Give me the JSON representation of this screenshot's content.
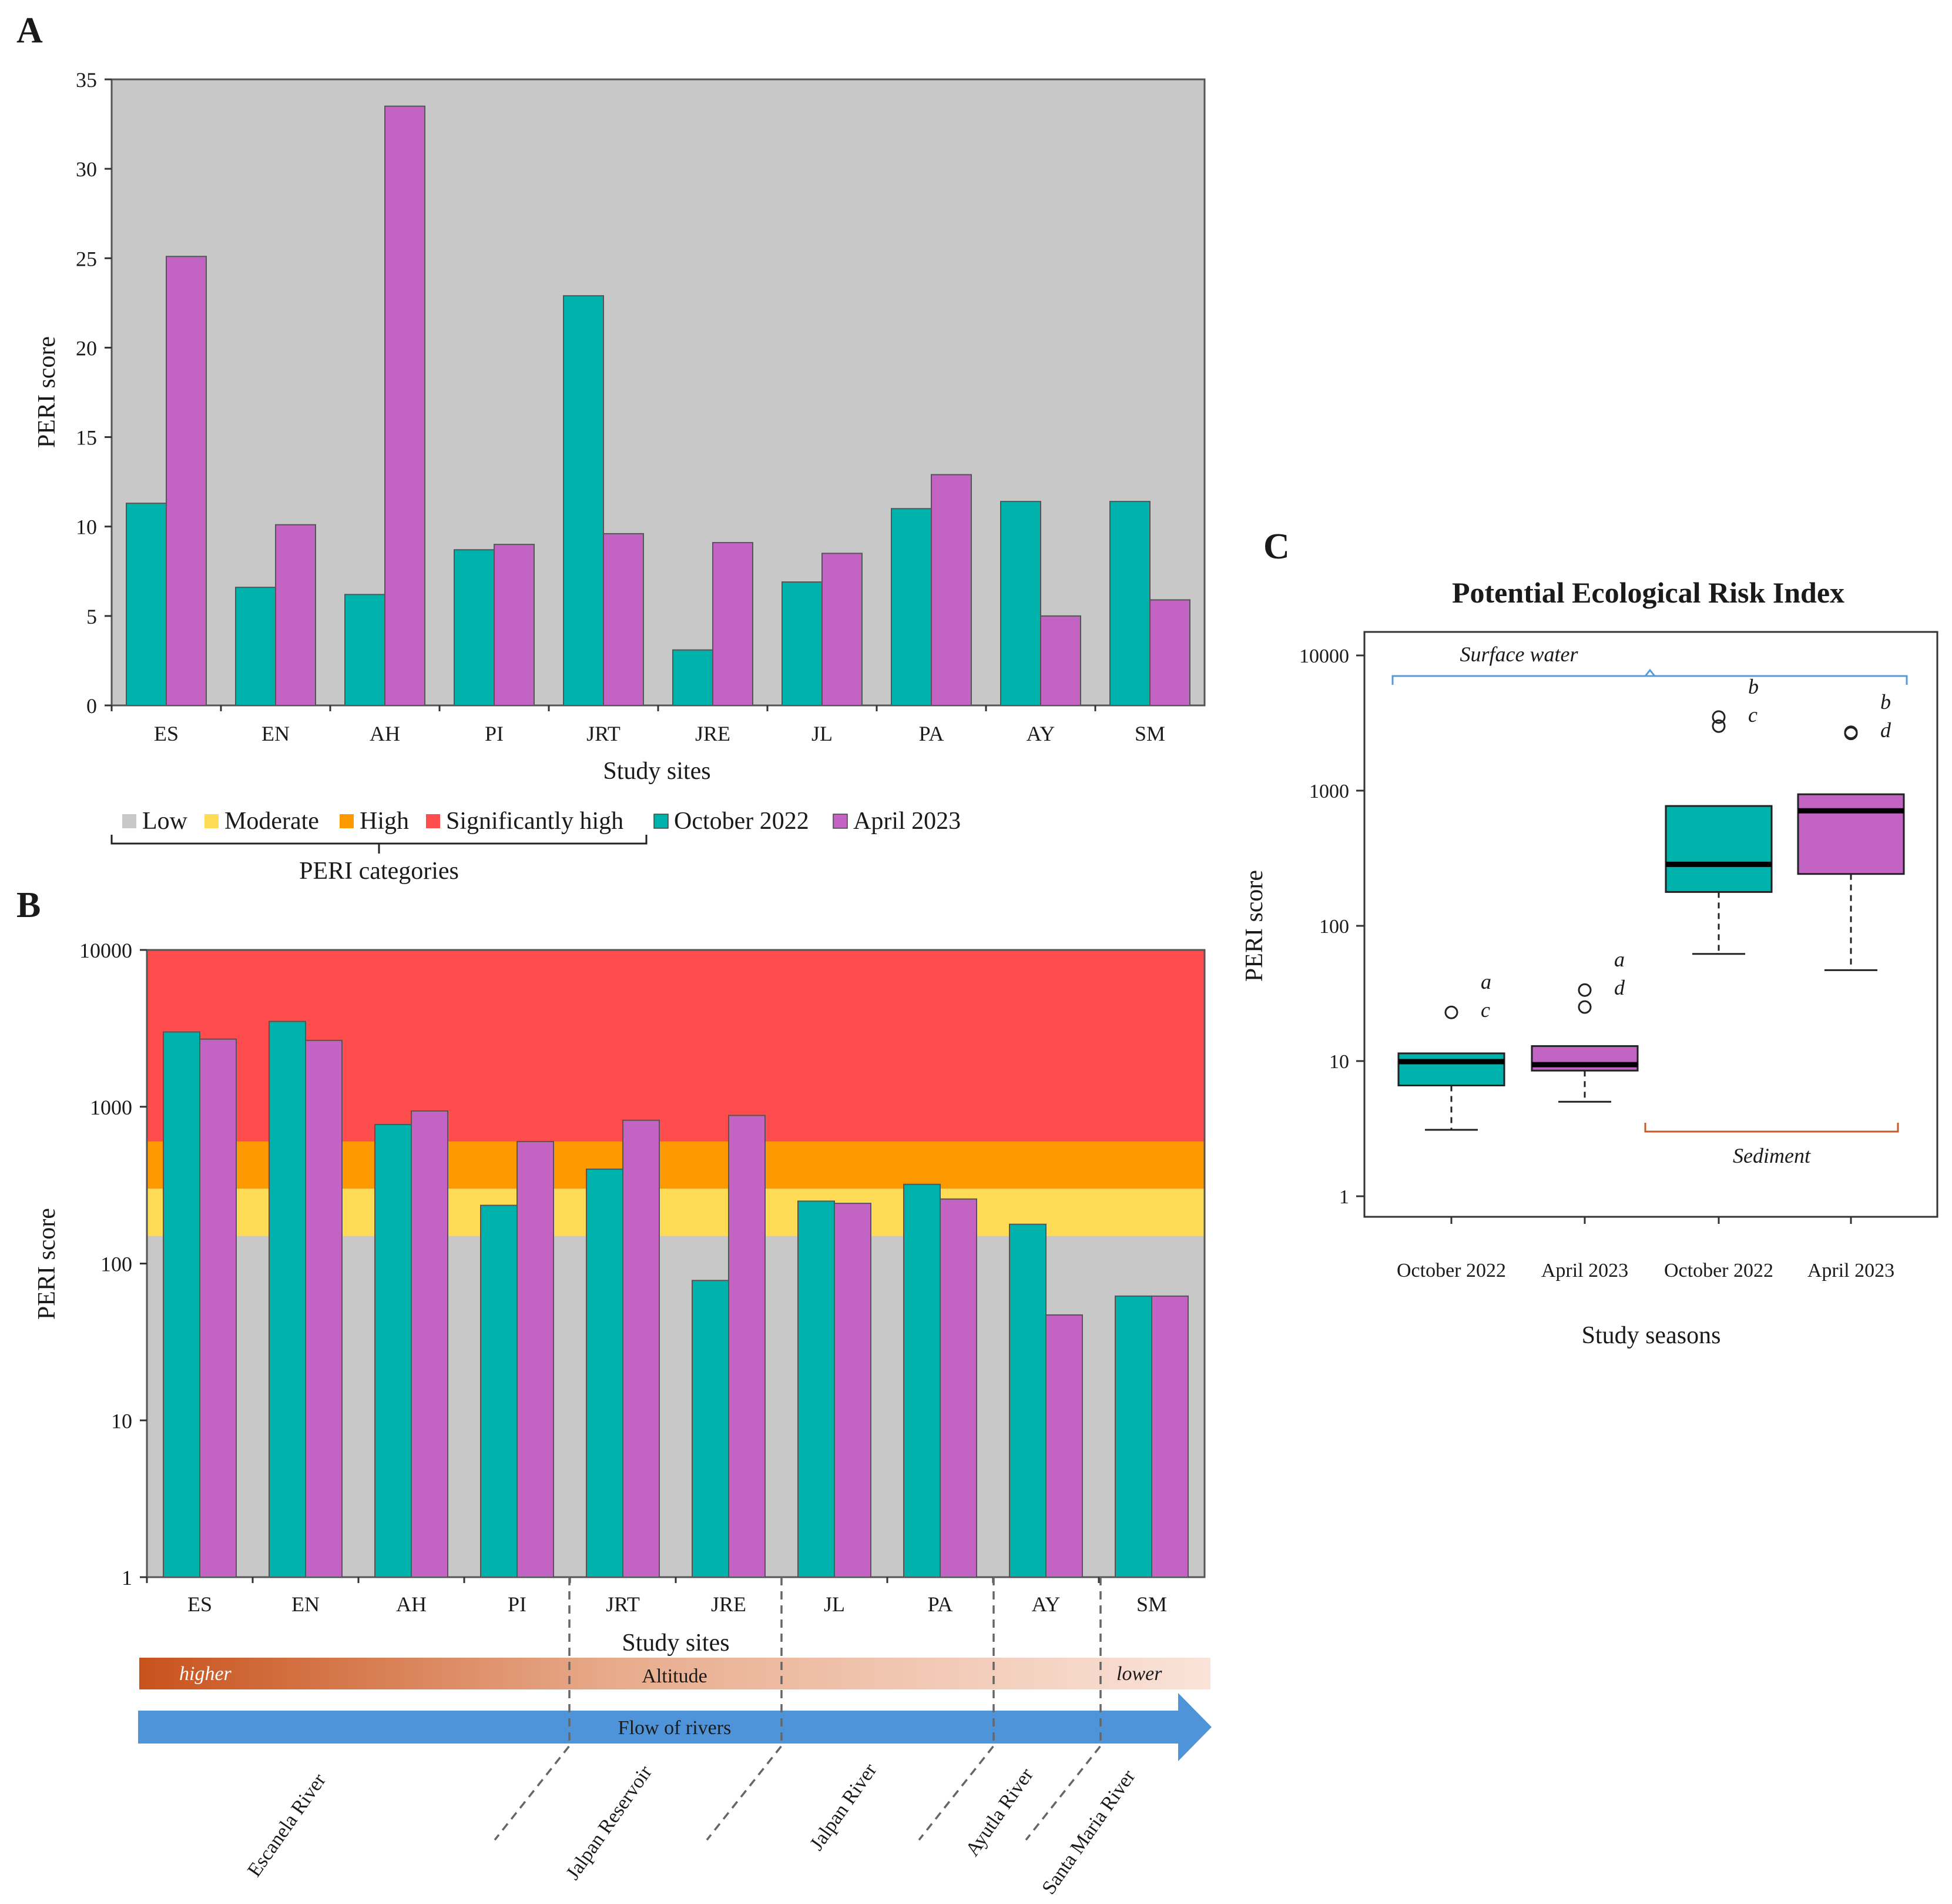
{
  "panels": {
    "a_label": "A",
    "b_label": "B",
    "c_label": "C"
  },
  "colors": {
    "october": "#00b2ac",
    "april": "#c364c5",
    "low": "#c8c8c8",
    "moderate": "#ffdc55",
    "high": "#ff9900",
    "significantly_high": "#ff4d4d",
    "surface_bracket": "#5b9bd5",
    "sediment_bracket": "#c55a2a",
    "flow_arrow": "#4f94d9",
    "altitude_high": "#c8521c",
    "altitude_low": "#fae3d9"
  },
  "legend": {
    "items": [
      {
        "label": "Low",
        "color": "#c8c8c8"
      },
      {
        "label": "Moderate",
        "color": "#ffdc55"
      },
      {
        "label": "High",
        "color": "#ff9900"
      },
      {
        "label": "Significantly high",
        "color": "#ff4d4d"
      },
      {
        "label": "October 2022",
        "color": "#00b2ac"
      },
      {
        "label": "April 2023",
        "color": "#c364c5"
      }
    ],
    "group_label": "PERI categories"
  },
  "chart_data": [
    {
      "id": "A",
      "type": "bar",
      "title": "",
      "xlabel": "Study sites",
      "ylabel": "PERI score",
      "ylim": [
        0,
        35
      ],
      "yticks": [
        0,
        5,
        10,
        15,
        20,
        25,
        30,
        35
      ],
      "background": "Low",
      "categories": [
        "ES",
        "EN",
        "AH",
        "PI",
        "JRT",
        "JRE",
        "JL",
        "PA",
        "AY",
        "SM"
      ],
      "series": [
        {
          "name": "October 2022",
          "values": [
            11.3,
            6.6,
            6.2,
            8.7,
            22.9,
            3.1,
            6.9,
            11.0,
            11.4,
            11.4
          ]
        },
        {
          "name": "April 2023",
          "values": [
            25.1,
            10.1,
            33.5,
            9.0,
            9.6,
            9.1,
            8.5,
            12.9,
            5.0,
            5.9
          ]
        }
      ]
    },
    {
      "id": "B",
      "type": "bar",
      "scale": "log",
      "xlabel": "Study sites",
      "ylabel": "PERI score",
      "ylim": [
        1,
        10000
      ],
      "yticks": [
        1,
        10,
        100,
        1000,
        10000
      ],
      "bands": [
        {
          "name": "Low",
          "from": 1,
          "to": 150
        },
        {
          "name": "Moderate",
          "from": 150,
          "to": 300
        },
        {
          "name": "High",
          "from": 300,
          "to": 600
        },
        {
          "name": "Significantly high",
          "from": 600,
          "to": 10000
        }
      ],
      "categories": [
        "ES",
        "EN",
        "AH",
        "PI",
        "JRT",
        "JRE",
        "JL",
        "PA",
        "AY",
        "SM"
      ],
      "series": [
        {
          "name": "October 2022",
          "values": [
            3000,
            3500,
            770,
            235,
            400,
            78,
            250,
            320,
            178,
            62
          ]
        },
        {
          "name": "April 2023",
          "values": [
            2700,
            2650,
            940,
            600,
            820,
            880,
            242,
            258,
            47,
            62
          ]
        }
      ],
      "altitude": {
        "label": "Altitude",
        "high_label": "higher",
        "low_label": "lower"
      },
      "flow_label": "Flow of rivers",
      "rivers": [
        "Escanela River",
        "Jalpan Reservoir",
        "Jalpan River",
        "Ayutla River",
        "Santa Maria River"
      ]
    },
    {
      "id": "C",
      "type": "box",
      "scale": "log",
      "title": "Potential Ecological Risk Index",
      "xlabel": "Study seasons",
      "ylabel": "PERI score",
      "ylim": [
        1,
        10000
      ],
      "yticks": [
        1,
        10,
        100,
        1000,
        10000
      ],
      "groups": [
        {
          "label": "October 2022",
          "matrix": "Surface water",
          "color": "october",
          "whisker_low": 3.1,
          "q1": 6.6,
          "median": 9.9,
          "q3": 11.4,
          "whisker_high": 11.4,
          "outliers": [
            22.9
          ],
          "letters": [
            "a",
            "c"
          ]
        },
        {
          "label": "April 2023",
          "matrix": "Surface water",
          "color": "april",
          "whisker_low": 5.0,
          "q1": 8.5,
          "median": 9.4,
          "q3": 12.9,
          "whisker_high": 12.9,
          "outliers": [
            25.1,
            33.5
          ],
          "letters": [
            "a",
            "d"
          ]
        },
        {
          "label": "October 2022",
          "matrix": "Sediment",
          "color": "october",
          "whisker_low": 62,
          "q1": 178,
          "median": 285,
          "q3": 770,
          "whisker_high": 770,
          "outliers": [
            3000,
            3500
          ],
          "letters": [
            "b",
            "c"
          ]
        },
        {
          "label": "April 2023",
          "matrix": "Sediment",
          "color": "april",
          "whisker_low": 47,
          "q1": 242,
          "median": 710,
          "q3": 940,
          "whisker_high": 940,
          "outliers": [
            2650,
            2700
          ],
          "letters": [
            "b",
            "d"
          ]
        }
      ],
      "annotations": {
        "surface": "Surface water",
        "sediment": "Sediment"
      }
    }
  ]
}
